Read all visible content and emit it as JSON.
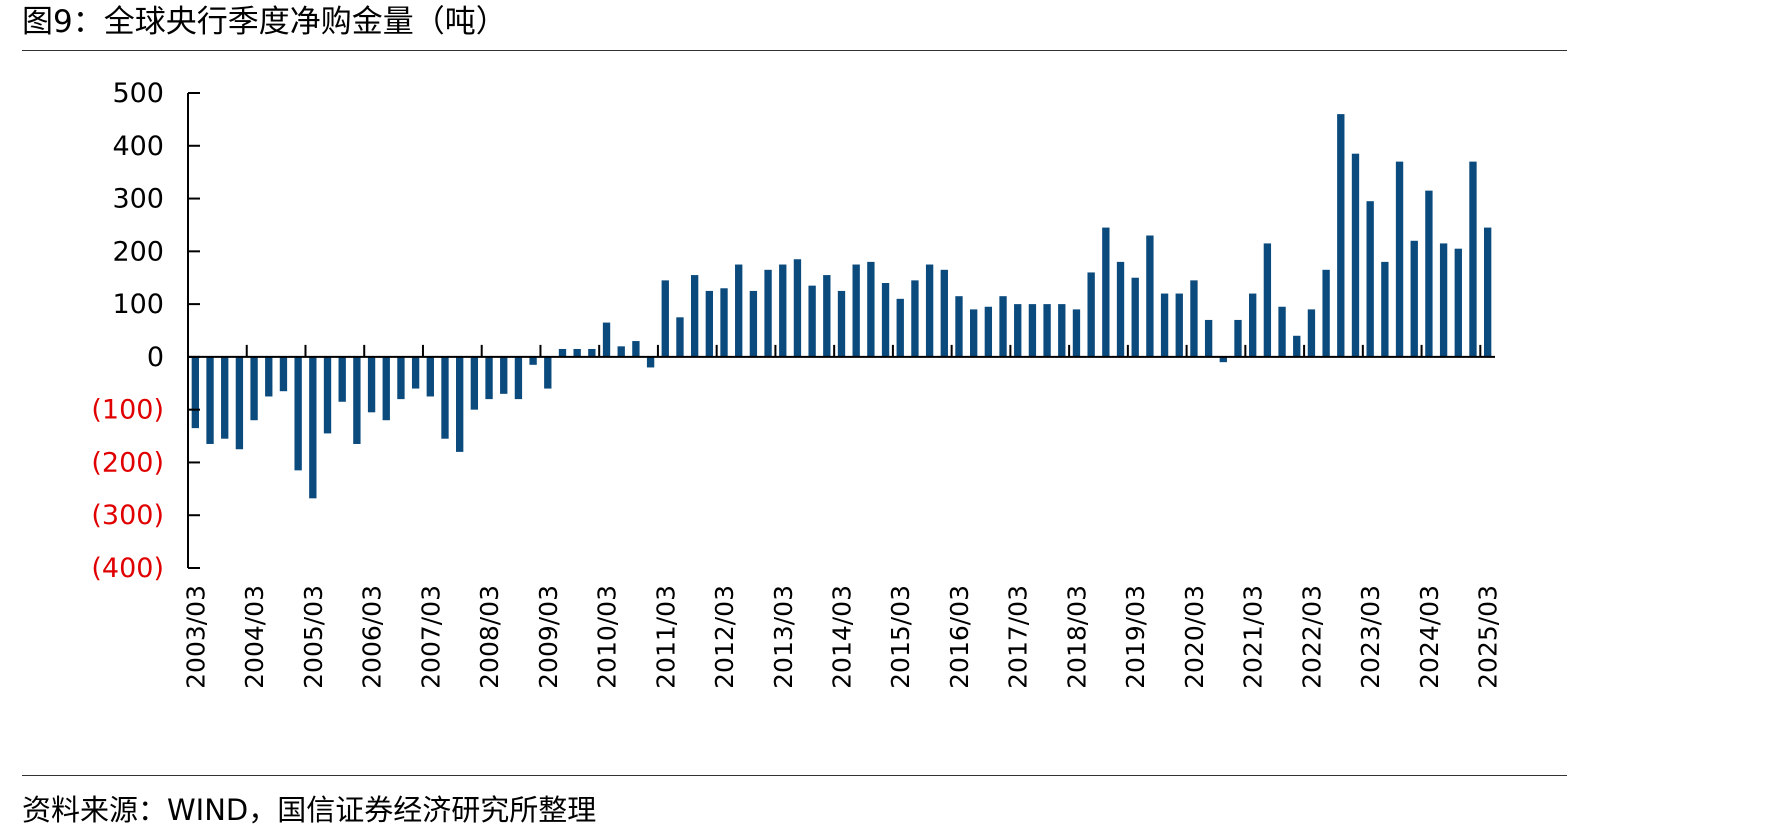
{
  "header": {
    "title": "图9：全球央行季度净购金量（吨）"
  },
  "footer": {
    "source": "资料来源：WIND，国信证券经济研究所整理"
  },
  "colors": {
    "bar": "#0b4a7d",
    "negative_label": "#e00000",
    "axis": "#000000"
  },
  "chart_data": {
    "type": "bar",
    "title": "",
    "xlabel": "",
    "ylabel": "",
    "ylim": [
      -400,
      500
    ],
    "yticks": [
      {
        "value": 500,
        "label": "500"
      },
      {
        "value": 400,
        "label": "400"
      },
      {
        "value": 300,
        "label": "300"
      },
      {
        "value": 200,
        "label": "200"
      },
      {
        "value": 100,
        "label": "100"
      },
      {
        "value": 0,
        "label": "0"
      },
      {
        "value": -100,
        "label": "(100)"
      },
      {
        "value": -200,
        "label": "(200)"
      },
      {
        "value": -300,
        "label": "(300)"
      },
      {
        "value": -400,
        "label": "(400)"
      }
    ],
    "xtick_labels": [
      {
        "index": 0,
        "label": "2003/03"
      },
      {
        "index": 4,
        "label": "2004/03"
      },
      {
        "index": 8,
        "label": "2005/03"
      },
      {
        "index": 12,
        "label": "2006/03"
      },
      {
        "index": 16,
        "label": "2007/03"
      },
      {
        "index": 20,
        "label": "2008/03"
      },
      {
        "index": 24,
        "label": "2009/03"
      },
      {
        "index": 28,
        "label": "2010/03"
      },
      {
        "index": 32,
        "label": "2011/03"
      },
      {
        "index": 36,
        "label": "2012/03"
      },
      {
        "index": 40,
        "label": "2013/03"
      },
      {
        "index": 44,
        "label": "2014/03"
      },
      {
        "index": 48,
        "label": "2015/03"
      },
      {
        "index": 52,
        "label": "2016/03"
      },
      {
        "index": 56,
        "label": "2017/03"
      },
      {
        "index": 60,
        "label": "2018/03"
      },
      {
        "index": 64,
        "label": "2019/03"
      },
      {
        "index": 68,
        "label": "2020/03"
      },
      {
        "index": 72,
        "label": "2021/03"
      },
      {
        "index": 76,
        "label": "2022/03"
      },
      {
        "index": 80,
        "label": "2023/03"
      },
      {
        "index": 84,
        "label": "2024/03"
      },
      {
        "index": 88,
        "label": "2025/03"
      }
    ],
    "values": [
      -135,
      -165,
      -155,
      -175,
      -120,
      -75,
      -65,
      -215,
      -268,
      -145,
      -85,
      -165,
      -105,
      -120,
      -80,
      -60,
      -75,
      -155,
      -180,
      -100,
      -80,
      -70,
      -80,
      -15,
      -60,
      15,
      15,
      15,
      65,
      20,
      30,
      -20,
      145,
      75,
      155,
      125,
      130,
      175,
      125,
      165,
      175,
      185,
      135,
      155,
      125,
      175,
      180,
      140,
      110,
      145,
      175,
      165,
      115,
      90,
      95,
      115,
      100,
      100,
      100,
      100,
      90,
      160,
      245,
      180,
      150,
      230,
      120,
      120,
      145,
      70,
      -10,
      70,
      120,
      215,
      95,
      40,
      90,
      165,
      460,
      385,
      295,
      180,
      370,
      220,
      315,
      215,
      205,
      370,
      245
    ]
  }
}
